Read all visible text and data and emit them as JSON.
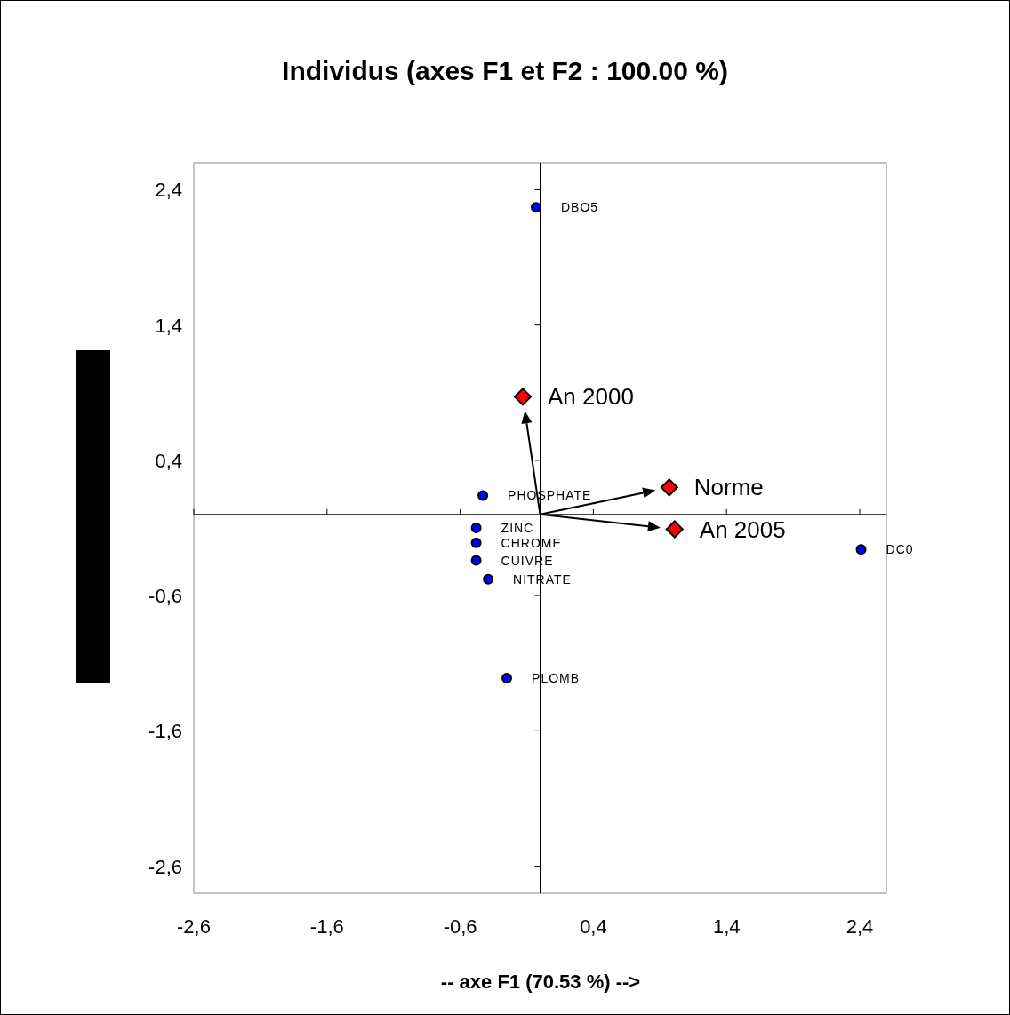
{
  "chart_data": {
    "type": "scatter",
    "title": "Individus (axes F1 et F2 : 100.00 %)",
    "xlabel": "-- axe F1 (70.53 %) -->",
    "series": [
      {
        "color": "#0000ff",
        "marker": "circle",
        "x": [
          -0.03,
          -0.43,
          -0.48,
          -0.48,
          -0.48,
          -0.39,
          -0.25,
          2.41
        ],
        "values": [
          2.27,
          0.14,
          -0.1,
          -0.21,
          -0.34,
          -0.48,
          -1.21,
          -0.26
        ]
      },
      {
        "color": "#ff0000",
        "marker": "diamond",
        "x": [
          -0.13,
          0.97,
          1.01
        ],
        "values": [
          0.87,
          0.2,
          -0.11
        ]
      }
    ],
    "annotations": [
      {
        "text": "DBO5",
        "x": -0.03,
        "y": 2.27
      },
      {
        "text": "PHOSPHATE",
        "x": -0.43,
        "y": 0.14
      },
      {
        "text": "ZINC",
        "x": -0.48,
        "y": -0.1
      },
      {
        "text": "CHROME",
        "x": -0.48,
        "y": -0.21
      },
      {
        "text": "CUIVRE",
        "x": -0.48,
        "y": -0.34
      },
      {
        "text": "NITRATE",
        "x": -0.39,
        "y": -0.48
      },
      {
        "text": "PLOMB",
        "x": -0.25,
        "y": -1.21
      },
      {
        "text": "DC0",
        "x": 2.41,
        "y": -0.26
      },
      {
        "text": "An 2000",
        "x": -0.13,
        "y": 0.87
      },
      {
        "text": "Norme",
        "x": 0.97,
        "y": 0.2
      },
      {
        "text": "An 2005",
        "x": 1.01,
        "y": -0.11
      }
    ],
    "xlim": [
      -2.6,
      2.6
    ],
    "ylim": [
      -2.8,
      2.6
    ],
    "xticks": [
      {
        "value": -2.6,
        "label": "-2,6"
      },
      {
        "value": -1.6,
        "label": "-1,6"
      },
      {
        "value": -0.6,
        "label": "-0,6"
      },
      {
        "value": 0.4,
        "label": "0,4"
      },
      {
        "value": 1.4,
        "label": "1,4"
      },
      {
        "value": 2.4,
        "label": "2,4"
      }
    ],
    "yticks": [
      {
        "value": -2.6,
        "label": "-2,6"
      },
      {
        "value": -1.6,
        "label": "-1,6"
      },
      {
        "value": -0.6,
        "label": "-0,6"
      },
      {
        "value": 0.4,
        "label": "0,4"
      },
      {
        "value": 1.4,
        "label": "1,4"
      },
      {
        "value": 2.4,
        "label": "2,4"
      }
    ],
    "grid": false
  }
}
